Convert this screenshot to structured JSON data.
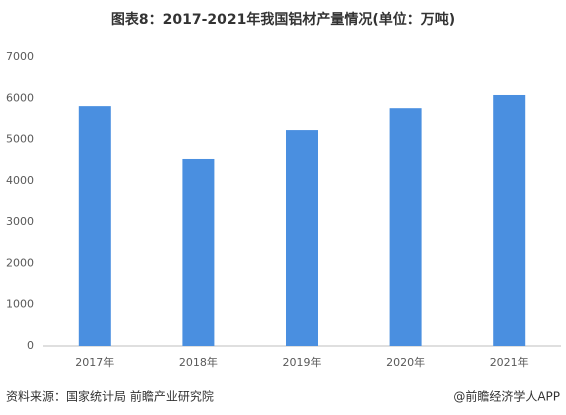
{
  "chart_data": {
    "type": "bar",
    "title": "图表8：2017-2021年我国铝材产量情况(单位：万吨)",
    "categories": [
      "2017年",
      "2018年",
      "2019年",
      "2020年",
      "2021年"
    ],
    "values": [
      5810,
      4530,
      5230,
      5760,
      6080
    ],
    "color": "#4a8fe0",
    "ylim": [
      0,
      7000
    ],
    "yticks": [
      0,
      1000,
      2000,
      3000,
      4000,
      5000,
      6000,
      7000
    ],
    "grid": false,
    "source": "资料来源：国家统计局 前瞻产业研究院",
    "credit": "@前瞻经济学人APP"
  }
}
